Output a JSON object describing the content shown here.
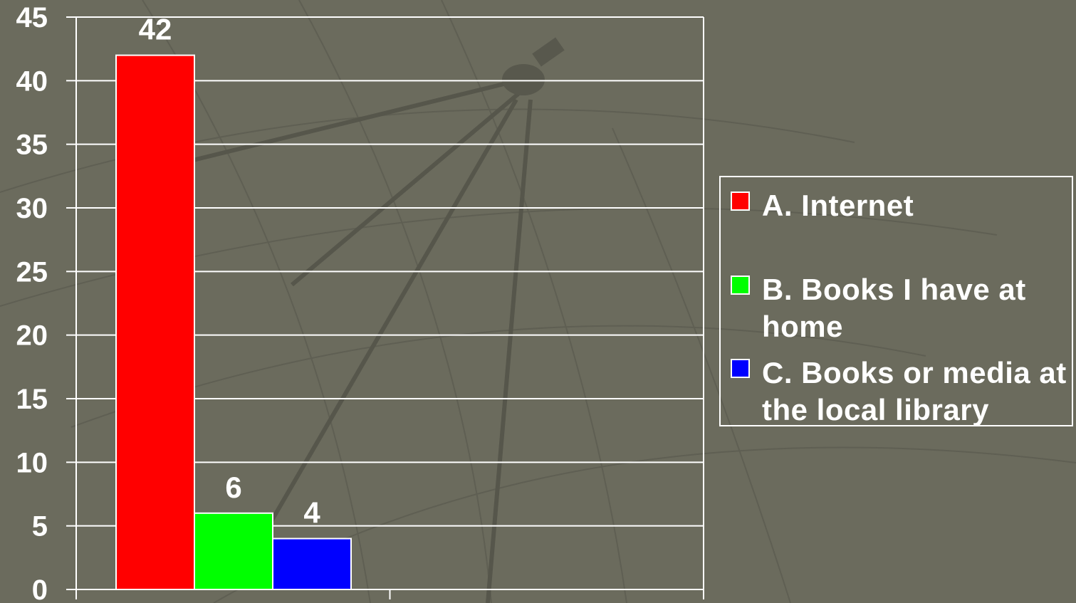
{
  "chart_data": {
    "type": "bar",
    "categories": [
      "A. Internet",
      "B. Books I have at home",
      "C. Books or media at the local library"
    ],
    "values": [
      42,
      6,
      4
    ],
    "colors": [
      "#ff0000",
      "#00ff00",
      "#0000ff"
    ],
    "data_labels": [
      "42",
      "6",
      "4"
    ],
    "ylim": [
      0,
      45
    ],
    "yticks": [
      "0",
      "5",
      "10",
      "15",
      "20",
      "25",
      "30",
      "35",
      "40",
      "45"
    ],
    "grid": true,
    "legend_position": "right",
    "title": "",
    "xlabel": "",
    "ylabel": ""
  },
  "legend": {
    "items": [
      {
        "label": "A. Internet",
        "color": "#ff0000"
      },
      {
        "label": "B. Books I have at home",
        "color": "#00ff00"
      },
      {
        "label": "C. Books or media at the local library",
        "color": "#0000ff"
      }
    ]
  }
}
